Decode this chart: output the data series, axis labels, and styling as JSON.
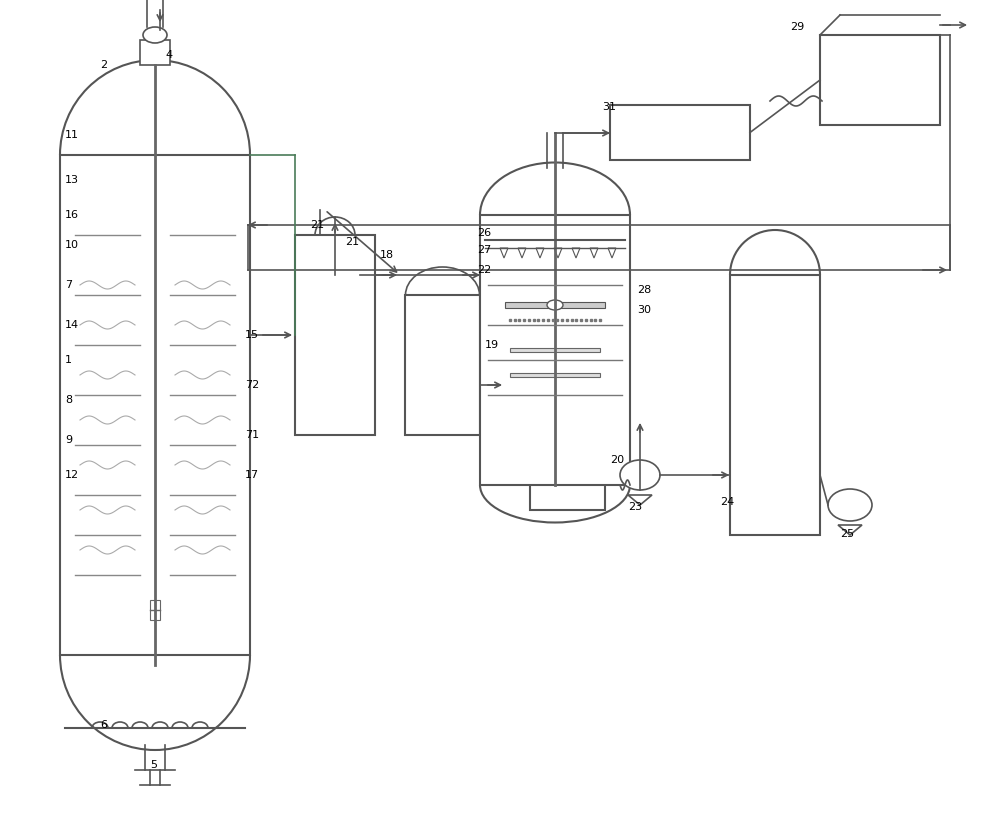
{
  "bg_color": "#ffffff",
  "line_color": "#555555",
  "line_color2": "#4a7c59",
  "line_width": 1.2,
  "fig_width": 10.0,
  "fig_height": 8.15
}
